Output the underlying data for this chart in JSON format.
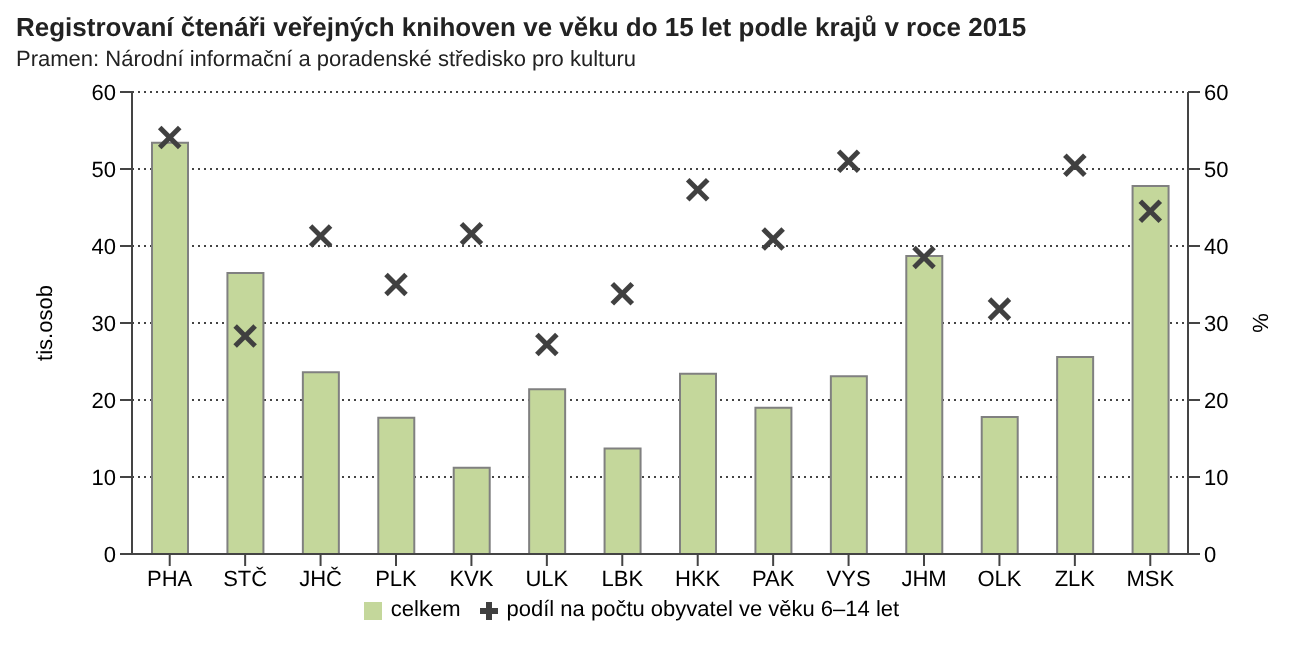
{
  "chart_data": {
    "type": "bar",
    "title": "Registrovaní  čtenáři veřejných knihoven ve věku do 15 let podle krajů v roce 2015",
    "subtitle": "Pramen: Národní informační a poradenské středisko pro kulturu",
    "categories": [
      "PHA",
      "STČ",
      "JHČ",
      "PLK",
      "KVK",
      "ULK",
      "LBK",
      "HKK",
      "PAK",
      "VYS",
      "JHM",
      "OLK",
      "ZLK",
      "MSK"
    ],
    "series": [
      {
        "name": "celkem",
        "color": "#c4d79b",
        "values": [
          53.4,
          36.5,
          23.6,
          17.7,
          11.2,
          21.4,
          13.7,
          23.4,
          19.0,
          23.1,
          38.7,
          17.8,
          25.6,
          47.8
        ]
      },
      {
        "name": "podíl na počtu obyvatel ve věku 6–14 let",
        "type": "scatter",
        "axis": "y2",
        "marker": "cross",
        "color": "#404040",
        "values": [
          54.1,
          28.3,
          41.3,
          35.0,
          41.6,
          27.2,
          33.8,
          47.3,
          40.9,
          51.0,
          38.5,
          31.8,
          50.5,
          44.5
        ]
      }
    ],
    "ylabel": "tis.osob",
    "y2label": "%",
    "ylim": [
      0,
      60
    ],
    "yticks": [
      0,
      10,
      20,
      30,
      40,
      50,
      60
    ],
    "y2lim": [
      0,
      60
    ],
    "y2ticks": [
      0,
      10,
      20,
      30,
      40,
      50,
      60
    ],
    "grid": "y",
    "legend": "bottom"
  }
}
